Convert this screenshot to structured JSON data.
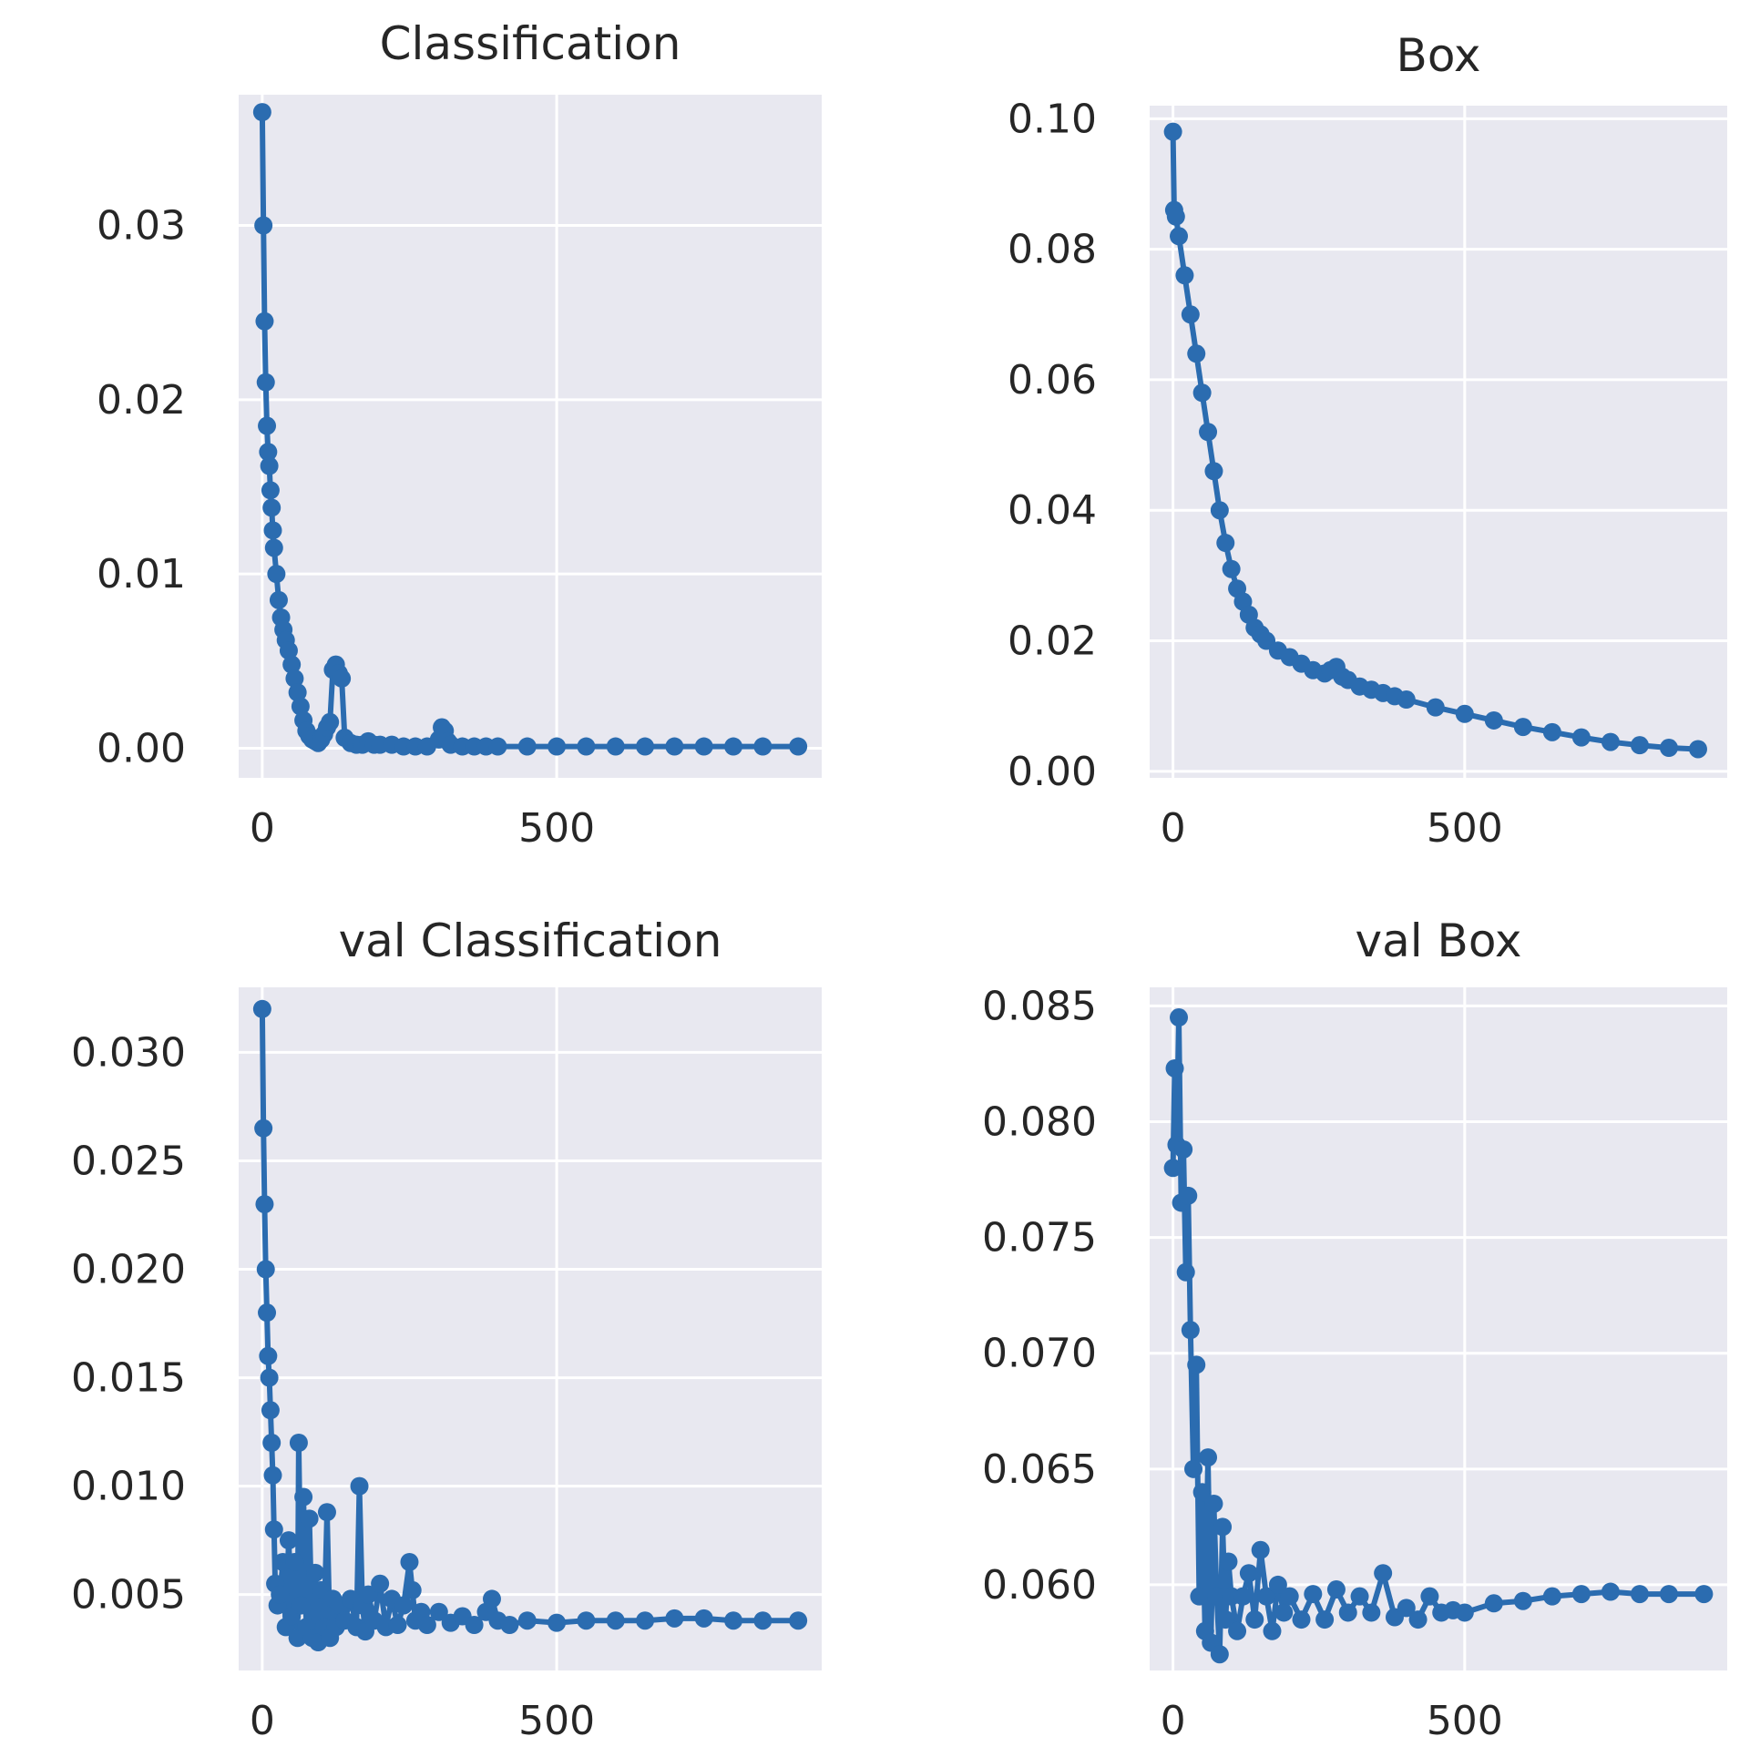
{
  "figure": {
    "layout": "2x2 grid of line plots with markers",
    "series_color": "#2b6cb0",
    "background_color": "#e8e8f0",
    "grid_color": "#ffffff"
  },
  "chart_data": [
    {
      "type": "line",
      "title": "Classification",
      "xlabel": "",
      "ylabel": "",
      "xlim": [
        -40,
        950
      ],
      "ylim": [
        -0.0017,
        0.0375
      ],
      "xticks": [
        0,
        500
      ],
      "xticklabels": [
        "0",
        "500"
      ],
      "yticks": [
        0,
        0.01,
        0.02,
        0.03
      ],
      "yticklabels": [
        "0.00",
        "0.01",
        "0.02",
        "0.03"
      ],
      "grid": true,
      "series": [
        {
          "name": "Classification",
          "x": [
            0,
            2,
            4,
            6,
            8,
            10,
            12,
            14,
            16,
            18,
            20,
            24,
            28,
            32,
            36,
            40,
            45,
            50,
            55,
            60,
            65,
            70,
            75,
            80,
            85,
            90,
            95,
            100,
            105,
            110,
            115,
            120,
            125,
            130,
            135,
            140,
            150,
            160,
            170,
            180,
            190,
            200,
            220,
            240,
            260,
            280,
            300,
            305,
            310,
            315,
            320,
            340,
            360,
            380,
            400,
            450,
            500,
            550,
            600,
            650,
            700,
            750,
            800,
            850,
            910
          ],
          "y": [
            0.0365,
            0.03,
            0.0245,
            0.021,
            0.0185,
            0.017,
            0.0162,
            0.0148,
            0.0138,
            0.0125,
            0.0115,
            0.01,
            0.0085,
            0.0075,
            0.0068,
            0.0062,
            0.0056,
            0.0048,
            0.004,
            0.0032,
            0.0024,
            0.0016,
            0.001,
            0.0007,
            0.0005,
            0.0004,
            0.0003,
            0.0005,
            0.0008,
            0.0012,
            0.0015,
            0.0045,
            0.0048,
            0.0043,
            0.004,
            0.0006,
            0.0003,
            0.0002,
            0.0002,
            0.0004,
            0.0002,
            0.0002,
            0.0002,
            0.0001,
            0.0001,
            0.0001,
            0.0005,
            0.0012,
            0.001,
            0.0004,
            0.0002,
            0.0001,
            0.0001,
            0.0001,
            0.0001,
            0.0001,
            0.0001,
            0.0001,
            0.0001,
            0.0001,
            0.0001,
            0.0001,
            0.0001,
            0.0001,
            0.0001
          ]
        }
      ]
    },
    {
      "type": "line",
      "title": "Box",
      "xlabel": "",
      "ylabel": "",
      "xlim": [
        -40,
        950
      ],
      "ylim": [
        -0.001,
        0.102
      ],
      "xticks": [
        0,
        500
      ],
      "xticklabels": [
        "0",
        "500"
      ],
      "yticks": [
        0,
        0.02,
        0.04,
        0.06,
        0.08,
        0.1
      ],
      "yticklabels": [
        "0.00",
        "0.02",
        "0.04",
        "0.06",
        "0.08",
        "0.10"
      ],
      "grid": true,
      "series": [
        {
          "name": "Box",
          "x": [
            0,
            2,
            5,
            10,
            20,
            30,
            40,
            50,
            60,
            70,
            80,
            90,
            100,
            110,
            120,
            130,
            140,
            150,
            160,
            180,
            200,
            220,
            240,
            260,
            270,
            280,
            290,
            300,
            320,
            340,
            360,
            380,
            400,
            450,
            500,
            550,
            600,
            650,
            700,
            750,
            800,
            850,
            900
          ],
          "y": [
            0.098,
            0.086,
            0.085,
            0.082,
            0.076,
            0.07,
            0.064,
            0.058,
            0.052,
            0.046,
            0.04,
            0.035,
            0.031,
            0.028,
            0.026,
            0.024,
            0.022,
            0.021,
            0.02,
            0.0185,
            0.0175,
            0.0165,
            0.0155,
            0.015,
            0.0155,
            0.016,
            0.0145,
            0.014,
            0.013,
            0.0125,
            0.012,
            0.0115,
            0.011,
            0.0098,
            0.0088,
            0.0078,
            0.0068,
            0.006,
            0.0052,
            0.0045,
            0.004,
            0.0036,
            0.0034
          ]
        }
      ]
    },
    {
      "type": "line",
      "title": "val Classification",
      "xlabel": "",
      "ylabel": "",
      "xlim": [
        -40,
        950
      ],
      "ylim": [
        0.0015,
        0.033
      ],
      "xticks": [
        0,
        500
      ],
      "xticklabels": [
        "0",
        "500"
      ],
      "yticks": [
        0.005,
        0.01,
        0.015,
        0.02,
        0.025,
        0.03
      ],
      "yticklabels": [
        "0.005",
        "0.010",
        "0.015",
        "0.020",
        "0.025",
        "0.030"
      ],
      "grid": true,
      "series": [
        {
          "name": "val Classification",
          "x": [
            0,
            2,
            4,
            6,
            8,
            10,
            12,
            14,
            16,
            18,
            20,
            22,
            26,
            30,
            35,
            40,
            45,
            50,
            55,
            60,
            62,
            66,
            70,
            75,
            80,
            85,
            90,
            95,
            100,
            105,
            110,
            115,
            120,
            125,
            130,
            140,
            150,
            160,
            165,
            170,
            175,
            180,
            190,
            200,
            210,
            220,
            230,
            240,
            250,
            255,
            260,
            270,
            280,
            300,
            320,
            340,
            360,
            380,
            390,
            400,
            420,
            450,
            500,
            550,
            600,
            650,
            700,
            750,
            800,
            850,
            910
          ],
          "y": [
            0.032,
            0.0265,
            0.023,
            0.02,
            0.018,
            0.016,
            0.015,
            0.0135,
            0.012,
            0.0105,
            0.008,
            0.0055,
            0.0045,
            0.005,
            0.0065,
            0.0035,
            0.0075,
            0.004,
            0.0065,
            0.003,
            0.012,
            0.0045,
            0.0095,
            0.0035,
            0.0085,
            0.003,
            0.006,
            0.0028,
            0.0052,
            0.0035,
            0.0088,
            0.003,
            0.0048,
            0.0035,
            0.0045,
            0.0038,
            0.0048,
            0.0035,
            0.01,
            0.0045,
            0.0033,
            0.005,
            0.0038,
            0.0055,
            0.0035,
            0.0048,
            0.0036,
            0.0045,
            0.0065,
            0.0052,
            0.0038,
            0.0042,
            0.0036,
            0.0042,
            0.0037,
            0.004,
            0.0036,
            0.0042,
            0.0048,
            0.0038,
            0.0036,
            0.0038,
            0.0037,
            0.0038,
            0.0038,
            0.0038,
            0.0039,
            0.0039,
            0.0038,
            0.0038,
            0.0038
          ]
        }
      ]
    },
    {
      "type": "line",
      "title": "val Box",
      "xlabel": "",
      "ylabel": "",
      "xlim": [
        -40,
        950
      ],
      "ylim": [
        0.0563,
        0.0858
      ],
      "xticks": [
        0,
        500
      ],
      "xticklabels": [
        "0",
        "500"
      ],
      "yticks": [
        0.06,
        0.065,
        0.07,
        0.075,
        0.08,
        0.085
      ],
      "yticklabels": [
        "0.060",
        "0.065",
        "0.070",
        "0.075",
        "0.080",
        "0.085"
      ],
      "grid": true,
      "series": [
        {
          "name": "val Box",
          "x": [
            0,
            3,
            6,
            10,
            14,
            18,
            22,
            26,
            30,
            35,
            40,
            45,
            50,
            55,
            60,
            65,
            70,
            75,
            80,
            85,
            90,
            95,
            100,
            110,
            120,
            130,
            140,
            150,
            160,
            170,
            180,
            190,
            200,
            220,
            240,
            260,
            280,
            300,
            320,
            340,
            360,
            380,
            400,
            420,
            440,
            460,
            480,
            500,
            550,
            600,
            650,
            700,
            750,
            800,
            850,
            910
          ],
          "y": [
            0.078,
            0.0823,
            0.079,
            0.0845,
            0.0765,
            0.0788,
            0.0735,
            0.0768,
            0.071,
            0.065,
            0.0695,
            0.0595,
            0.064,
            0.058,
            0.0655,
            0.0575,
            0.0635,
            0.0595,
            0.057,
            0.0625,
            0.0585,
            0.061,
            0.0595,
            0.058,
            0.0595,
            0.0605,
            0.0585,
            0.0615,
            0.0595,
            0.058,
            0.06,
            0.0588,
            0.0595,
            0.0585,
            0.0596,
            0.0585,
            0.0598,
            0.0588,
            0.0595,
            0.0588,
            0.0605,
            0.0586,
            0.059,
            0.0585,
            0.0595,
            0.0588,
            0.0589,
            0.0588,
            0.0592,
            0.0593,
            0.0595,
            0.0596,
            0.0597,
            0.0596,
            0.0596,
            0.0596
          ]
        }
      ]
    }
  ]
}
